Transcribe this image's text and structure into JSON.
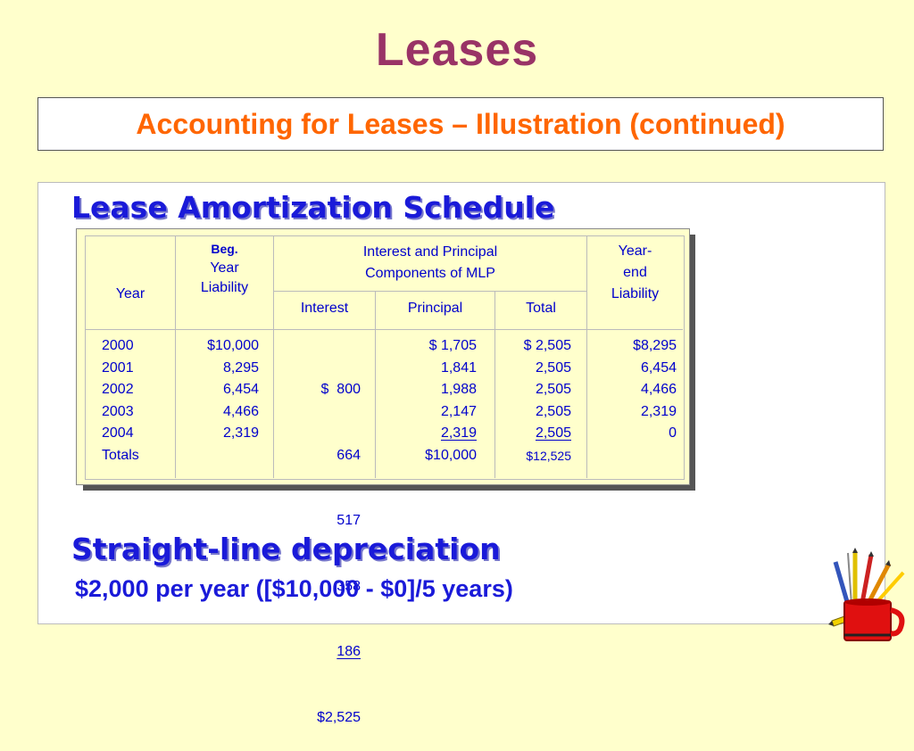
{
  "slide": {
    "title": "Leases",
    "subtitle": "Accounting for Leases – Illustration (continued)"
  },
  "schedule": {
    "heading": "Lease Amortization Schedule",
    "headers": {
      "year": "Year",
      "beg_line1": "Beg.",
      "beg_line2": "Year",
      "beg_line3": "Liability",
      "components_line1": "Interest and Principal",
      "components_line2": "Components of MLP",
      "interest": "Interest",
      "principal": "Principal",
      "total": "Total",
      "end_line1": "Year-",
      "end_line2": "end",
      "end_line3": "Liability"
    },
    "rows": [
      {
        "year": "2000",
        "beg": "$10,000",
        "interest": "$  800",
        "principal": "$ 1,705",
        "total": "$ 2,505",
        "end": "$8,295"
      },
      {
        "year": "2001",
        "beg": "8,295",
        "interest": "664",
        "principal": "1,841",
        "total": "2,505",
        "end": "6,454"
      },
      {
        "year": "2002",
        "beg": "6,454",
        "interest": "517",
        "principal": "1,988",
        "total": "2,505",
        "end": "4,466"
      },
      {
        "year": "2003",
        "beg": "4,466",
        "interest": "358",
        "principal": "2,147",
        "total": "2,505",
        "end": "2,319"
      },
      {
        "year": "2004",
        "beg": "2,319",
        "interest": "186",
        "principal": "2,319",
        "total": "2,505",
        "end": "0"
      }
    ],
    "totals": {
      "label": "Totals",
      "interest": "$2,525",
      "principal": "$10,000",
      "total": "$12,525"
    }
  },
  "depreciation": {
    "heading": "Straight-line depreciation",
    "text": "$2,000 per year ([$10,000 - $0]/5 years)"
  },
  "decor": {
    "icon": "pencil-cup-icon"
  },
  "colors": {
    "background": "#FFFFCC",
    "title": "#993366",
    "subtitle": "#FF6600",
    "heading_blue": "#1A1AD9",
    "table_text": "#0000CC"
  }
}
